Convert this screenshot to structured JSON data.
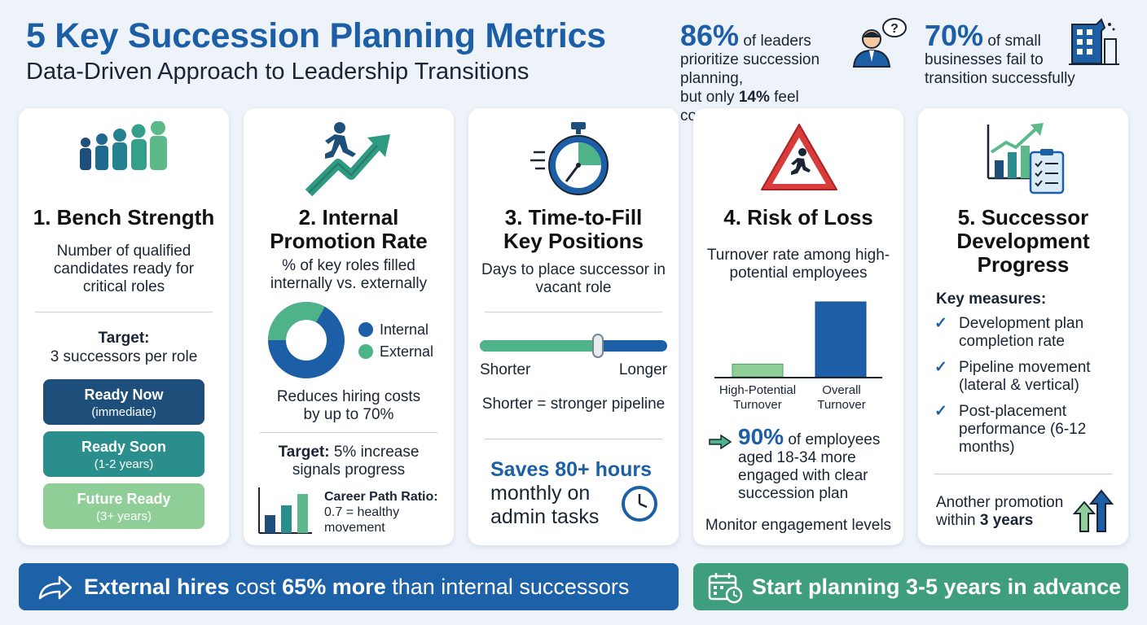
{
  "header": {
    "title": "5 Key Succession Planning Metrics",
    "subtitle": "Data-Driven Approach to Leadership Transitions"
  },
  "stats": [
    {
      "big": "86%",
      "line1": "of leaders",
      "line2": "prioritize succession planning,",
      "line3_pre": "but only",
      "line3_bold": "14%",
      "line3_post": "feel confident",
      "icon": "confused-leader-icon"
    },
    {
      "big": "70%",
      "line1": "of small",
      "line2": "businesses fail to",
      "line3": "transition successfully",
      "icon": "crumbling-building-icon"
    }
  ],
  "cards": {
    "bench": {
      "title": "1. Bench Strength",
      "desc": "Number of qualified candidates ready for critical roles",
      "target_label": "Target:",
      "target_value": "3 successors per role",
      "levels": [
        {
          "title": "Ready Now",
          "sub": "(immediate)",
          "color": "#1e4e7a"
        },
        {
          "title": "Ready Soon",
          "sub": "(1-2 years)",
          "color": "#2a8f8c"
        },
        {
          "title": "Future Ready",
          "sub": "(3+ years)",
          "color": "#8fcf97"
        }
      ],
      "icon": "people-growth-icon"
    },
    "promotion": {
      "title_line1": "2. Internal",
      "title_line2": "Promotion Rate",
      "desc": "% of key roles filled internally vs. externally",
      "legend_internal": "Internal",
      "legend_external": "External",
      "note": "Reduces hiring costs by up to 70%",
      "target_bold": "Target:",
      "target_rest": "5% increase signals progress",
      "ratio_bold": "Career Path Ratio:",
      "ratio_rest": "0.7 = healthy movement",
      "icon": "climbing-arrow-icon"
    },
    "timefill": {
      "title_line1": "3. Time-to-Fill",
      "title_line2": "Key Positions",
      "desc": "Days to place successor in vacant role",
      "slider_left": "Shorter",
      "slider_right": "Longer",
      "slider_value": 0.63,
      "slider_note": "Shorter = stronger pipeline",
      "savings_line1": "Saves 80+ hours",
      "savings_line2": "monthly on",
      "savings_line3": "admin tasks",
      "icon": "stopwatch-icon"
    },
    "risk": {
      "title": "4. Risk of Loss",
      "desc": "Turnover rate among high-potential employees",
      "bar_labels": [
        "High-Potential Turnover",
        "Overall Turnover"
      ],
      "bar_values": [
        0.17,
        1.0
      ],
      "stat_big": "90%",
      "stat_rest": "of employees aged 18-34 more engaged with clear succession plan",
      "monitor": "Monitor engagement levels",
      "icon": "warning-runner-icon"
    },
    "development": {
      "title_line1": "5. Successor",
      "title_line2": "Development",
      "title_line3": "Progress",
      "measures_label": "Key measures:",
      "measures": [
        "Development plan completion rate",
        "Pipeline movement (lateral & vertical)",
        "Post-placement performance (6-12 months)"
      ],
      "promo_pre": "Another promotion within",
      "promo_bold": "3 years",
      "icon": "chart-checklist-icon"
    }
  },
  "footer": {
    "left_bold1": "External hires",
    "left_mid": "cost",
    "left_bold2": "65% more",
    "left_post": "than internal successors",
    "right": "Start planning 3-5 years in advance",
    "colors": {
      "left": "#1d62a8",
      "right": "#3f9e7e"
    }
  },
  "colors": {
    "primary": "#1d5fa6",
    "teal": "#2a8f8c",
    "green": "#5cba8a",
    "danger": "#d93a3a"
  }
}
